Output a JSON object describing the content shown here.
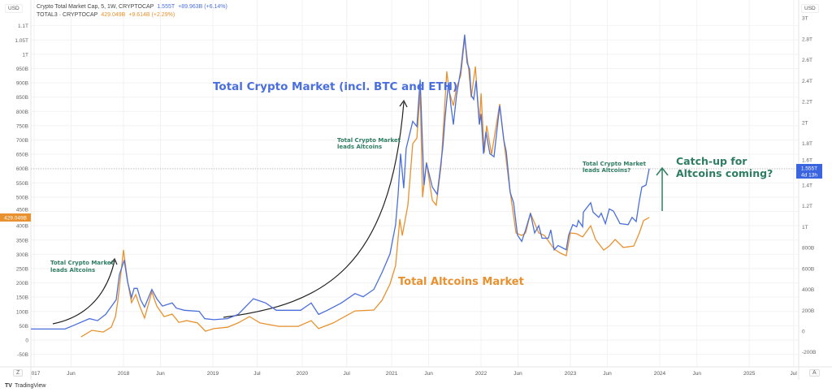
{
  "legend": {
    "series1_name": "Crypto Total Market Cap, 5, 1W, CRYPTOCAP",
    "series1_value": "1.555T",
    "series1_change": "+89.963B (+6.14%)",
    "series2_name": "TOTAL3 · CRYPTOCAP",
    "series2_value": "429.049B",
    "series2_change": "+9.614B (+2.29%)"
  },
  "left_currency": "USD",
  "right_currency": "USD",
  "last_price_left": "429.049B",
  "last_price_right": "1.555T",
  "countdown": "4d 13h",
  "zoom_button": "Z",
  "auto_button": "A",
  "branding": "TradingView",
  "colors": {
    "total": "#4a6fdc",
    "total3": "#e8912e",
    "annotation": "#2e7d63",
    "arrow": "#222222"
  },
  "chart_data": {
    "type": "line",
    "grid": true,
    "x_ticks": [
      "017",
      "Jun",
      "2018",
      "Jun",
      "2019",
      "Jul",
      "2020",
      "Jul",
      "2021",
      "Jun",
      "2022",
      "Jun",
      "2023",
      "Jun",
      "2024",
      "Jun",
      "2025",
      "Jul"
    ],
    "x_tick_dates": [
      "2017-01-01",
      "2017-06-01",
      "2018-01-01",
      "2018-06-01",
      "2019-01-01",
      "2019-07-01",
      "2020-01-01",
      "2020-07-01",
      "2021-01-01",
      "2021-06-01",
      "2022-01-01",
      "2022-06-01",
      "2023-01-01",
      "2023-06-01",
      "2024-01-01",
      "2024-06-01",
      "2025-01-01",
      "2025-07-01"
    ],
    "left_axis": {
      "ticks": [
        "1.1T",
        "1.05T",
        "1T",
        "950B",
        "900B",
        "850B",
        "800B",
        "750B",
        "700B",
        "650B",
        "600B",
        "550B",
        "500B",
        "450B",
        "400B",
        "350B",
        "300B",
        "250B",
        "200B",
        "150B",
        "100B",
        "50B",
        "0",
        "-50B"
      ],
      "range_billions": [
        -50,
        1100
      ]
    },
    "right_axis": {
      "ticks": [
        "3T",
        "2.8T",
        "2.6T",
        "2.4T",
        "2.2T",
        "2T",
        "1.8T",
        "1.6T",
        "1.4T",
        "1.2T",
        "1T",
        "800B",
        "600B",
        "400B",
        "200B",
        "0",
        "-200B"
      ],
      "range_trillions": [
        -0.2,
        3.0
      ]
    },
    "series": [
      {
        "axis": "right",
        "unit": "T",
        "points": [
          [
            "2016-12-19",
            0.02
          ],
          [
            "2017-03-12",
            0.02
          ],
          [
            "2017-05-07",
            0.02
          ],
          [
            "2017-06-16",
            0.06
          ],
          [
            "2017-08-15",
            0.12
          ],
          [
            "2017-09-17",
            0.1
          ],
          [
            "2017-10-20",
            0.16
          ],
          [
            "2017-12-02",
            0.3
          ],
          [
            "2017-12-15",
            0.54
          ],
          [
            "2018-01-04",
            0.68
          ],
          [
            "2018-01-18",
            0.47
          ],
          [
            "2018-02-03",
            0.32
          ],
          [
            "2018-02-13",
            0.41
          ],
          [
            "2018-02-26",
            0.41
          ],
          [
            "2018-03-12",
            0.3
          ],
          [
            "2018-03-28",
            0.23
          ],
          [
            "2018-04-27",
            0.4
          ],
          [
            "2018-05-17",
            0.31
          ],
          [
            "2018-06-09",
            0.24
          ],
          [
            "2018-07-19",
            0.27
          ],
          [
            "2018-08-05",
            0.22
          ],
          [
            "2018-09-07",
            0.2
          ],
          [
            "2018-11-06",
            0.19
          ],
          [
            "2018-11-29",
            0.12
          ],
          [
            "2019-01-05",
            0.11
          ],
          [
            "2019-03-02",
            0.12
          ],
          [
            "2019-04-14",
            0.16
          ],
          [
            "2019-06-16",
            0.31
          ],
          [
            "2019-08-05",
            0.27
          ],
          [
            "2019-09-17",
            0.2
          ],
          [
            "2019-11-13",
            0.2
          ],
          [
            "2019-12-26",
            0.2
          ],
          [
            "2020-02-07",
            0.27
          ],
          [
            "2020-03-08",
            0.16
          ],
          [
            "2020-04-13",
            0.2
          ],
          [
            "2020-06-09",
            0.27
          ],
          [
            "2020-08-04",
            0.36
          ],
          [
            "2020-09-06",
            0.33
          ],
          [
            "2020-10-20",
            0.4
          ],
          [
            "2020-11-22",
            0.56
          ],
          [
            "2020-12-25",
            0.74
          ],
          [
            "2021-01-17",
            1.02
          ],
          [
            "2021-01-27",
            1.31
          ],
          [
            "2021-02-06",
            1.7
          ],
          [
            "2021-02-19",
            1.37
          ],
          [
            "2021-03-01",
            1.75
          ],
          [
            "2021-03-28",
            2.01
          ],
          [
            "2021-04-14",
            1.96
          ],
          [
            "2021-04-27",
            2.41
          ],
          [
            "2021-05-13",
            1.4
          ],
          [
            "2021-05-23",
            1.61
          ],
          [
            "2021-06-16",
            1.38
          ],
          [
            "2021-07-06",
            1.31
          ],
          [
            "2021-07-29",
            1.77
          ],
          [
            "2021-08-08",
            2.07
          ],
          [
            "2021-08-21",
            2.38
          ],
          [
            "2021-08-31",
            2.16
          ],
          [
            "2021-09-10",
            1.98
          ],
          [
            "2021-09-23",
            2.26
          ],
          [
            "2021-10-10",
            2.5
          ],
          [
            "2021-10-26",
            2.84
          ],
          [
            "2021-11-05",
            2.57
          ],
          [
            "2021-11-15",
            2.51
          ],
          [
            "2021-11-22",
            2.26
          ],
          [
            "2021-12-02",
            2.22
          ],
          [
            "2021-12-12",
            2.4
          ],
          [
            "2021-12-25",
            1.98
          ],
          [
            "2022-01-01",
            2.08
          ],
          [
            "2022-01-11",
            1.7
          ],
          [
            "2022-01-21",
            1.91
          ],
          [
            "2022-02-06",
            1.7
          ],
          [
            "2022-02-23",
            1.67
          ],
          [
            "2022-03-18",
            2.16
          ],
          [
            "2022-04-04",
            1.83
          ],
          [
            "2022-04-14",
            1.72
          ],
          [
            "2022-04-30",
            1.33
          ],
          [
            "2022-05-14",
            1.23
          ],
          [
            "2022-05-30",
            0.92
          ],
          [
            "2022-06-16",
            0.86
          ],
          [
            "2022-07-02",
            0.97
          ],
          [
            "2022-07-22",
            1.13
          ],
          [
            "2022-08-08",
            0.94
          ],
          [
            "2022-08-25",
            1.01
          ],
          [
            "2022-09-07",
            0.89
          ],
          [
            "2022-10-03",
            0.89
          ],
          [
            "2022-10-13",
            0.97
          ],
          [
            "2022-10-27",
            0.78
          ],
          [
            "2022-11-12",
            0.82
          ],
          [
            "2022-12-15",
            0.78
          ],
          [
            "2022-12-25",
            0.92
          ],
          [
            "2023-01-11",
            1.02
          ],
          [
            "2023-01-27",
            1.0
          ],
          [
            "2023-02-03",
            1.06
          ],
          [
            "2023-02-20",
            1.0
          ],
          [
            "2023-02-23",
            1.14
          ],
          [
            "2023-03-25",
            1.23
          ],
          [
            "2023-04-04",
            1.14
          ],
          [
            "2023-04-27",
            1.09
          ],
          [
            "2023-05-07",
            1.13
          ],
          [
            "2023-05-24",
            1.03
          ],
          [
            "2023-06-09",
            1.17
          ],
          [
            "2023-06-26",
            1.15
          ],
          [
            "2023-07-23",
            1.03
          ],
          [
            "2023-08-25",
            1.02
          ],
          [
            "2023-09-10",
            1.09
          ],
          [
            "2023-09-27",
            1.05
          ],
          [
            "2023-10-10",
            1.25
          ],
          [
            "2023-10-20",
            1.38
          ],
          [
            "2023-11-06",
            1.4
          ],
          [
            "2023-11-19",
            1.555
          ]
        ]
      },
      {
        "axis": "left",
        "unit": "B",
        "points": [
          [
            "2017-07-12",
            11
          ],
          [
            "2017-08-25",
            34
          ],
          [
            "2017-10-10",
            28
          ],
          [
            "2017-11-12",
            45
          ],
          [
            "2017-11-29",
            82
          ],
          [
            "2017-12-09",
            139
          ],
          [
            "2018-01-01",
            315
          ],
          [
            "2018-01-18",
            205
          ],
          [
            "2018-02-03",
            131
          ],
          [
            "2018-02-20",
            159
          ],
          [
            "2018-03-08",
            119
          ],
          [
            "2018-03-28",
            77
          ],
          [
            "2018-04-27",
            168
          ],
          [
            "2018-05-17",
            119
          ],
          [
            "2018-06-16",
            82
          ],
          [
            "2018-07-19",
            91
          ],
          [
            "2018-08-15",
            62
          ],
          [
            "2018-09-17",
            68
          ],
          [
            "2018-10-30",
            60
          ],
          [
            "2018-12-02",
            31
          ],
          [
            "2019-01-05",
            40
          ],
          [
            "2019-03-02",
            45
          ],
          [
            "2019-04-14",
            60
          ],
          [
            "2019-05-31",
            82
          ],
          [
            "2019-07-13",
            60
          ],
          [
            "2019-09-27",
            48
          ],
          [
            "2019-12-16",
            48
          ],
          [
            "2020-02-07",
            68
          ],
          [
            "2020-03-08",
            40
          ],
          [
            "2020-05-07",
            60
          ],
          [
            "2020-08-04",
            102
          ],
          [
            "2020-10-20",
            105
          ],
          [
            "2020-11-22",
            139
          ],
          [
            "2020-12-25",
            196
          ],
          [
            "2021-01-17",
            261
          ],
          [
            "2021-02-03",
            423
          ],
          [
            "2021-02-13",
            366
          ],
          [
            "2021-03-08",
            472
          ],
          [
            "2021-03-28",
            687
          ],
          [
            "2021-04-14",
            707
          ],
          [
            "2021-04-27",
            869
          ],
          [
            "2021-05-07",
            500
          ],
          [
            "2021-05-23",
            622
          ],
          [
            "2021-06-16",
            489
          ],
          [
            "2021-07-02",
            472
          ],
          [
            "2021-07-22",
            614
          ],
          [
            "2021-08-14",
            940
          ],
          [
            "2021-08-24",
            869
          ],
          [
            "2021-09-10",
            820
          ],
          [
            "2021-09-23",
            883
          ],
          [
            "2021-10-10",
            926
          ],
          [
            "2021-10-26",
            1056
          ],
          [
            "2021-11-12",
            943
          ],
          [
            "2021-11-22",
            849
          ],
          [
            "2021-12-09",
            957
          ],
          [
            "2021-12-25",
            755
          ],
          [
            "2022-01-01",
            863
          ],
          [
            "2022-01-14",
            656
          ],
          [
            "2022-01-24",
            750
          ],
          [
            "2022-02-13",
            650
          ],
          [
            "2022-03-18",
            826
          ],
          [
            "2022-04-04",
            699
          ],
          [
            "2022-04-27",
            537
          ],
          [
            "2022-05-24",
            375
          ],
          [
            "2022-06-16",
            366
          ],
          [
            "2022-07-02",
            375
          ],
          [
            "2022-07-22",
            443
          ],
          [
            "2022-08-25",
            375
          ],
          [
            "2022-09-17",
            366
          ],
          [
            "2022-10-27",
            318
          ],
          [
            "2022-11-22",
            304
          ],
          [
            "2022-12-15",
            295
          ],
          [
            "2023-01-01",
            375
          ],
          [
            "2023-01-27",
            372
          ],
          [
            "2023-02-20",
            361
          ],
          [
            "2023-03-25",
            400
          ],
          [
            "2023-04-14",
            352
          ],
          [
            "2023-05-17",
            315
          ],
          [
            "2023-06-09",
            329
          ],
          [
            "2023-07-03",
            352
          ],
          [
            "2023-08-05",
            324
          ],
          [
            "2023-09-17",
            329
          ],
          [
            "2023-10-10",
            375
          ],
          [
            "2023-10-27",
            418
          ],
          [
            "2023-11-19",
            429
          ]
        ]
      }
    ],
    "annotations": {
      "total_label": "Total Crypto Market (incl. BTC and ETH)",
      "altcoins_label": "Total Altcoins Market",
      "leads_1_line1": "Total Crypto Market",
      "leads_1_line2": "leads Altcoins",
      "leads_2_line1": "Total Crypto Market",
      "leads_2_line2": "leads Altcoins",
      "leads_3_line1": "Total Crypto Market",
      "leads_3_line2": "leads Altcoins?",
      "catchup_line1": "Catch-up for",
      "catchup_line2": "Altcoins coming?"
    }
  }
}
